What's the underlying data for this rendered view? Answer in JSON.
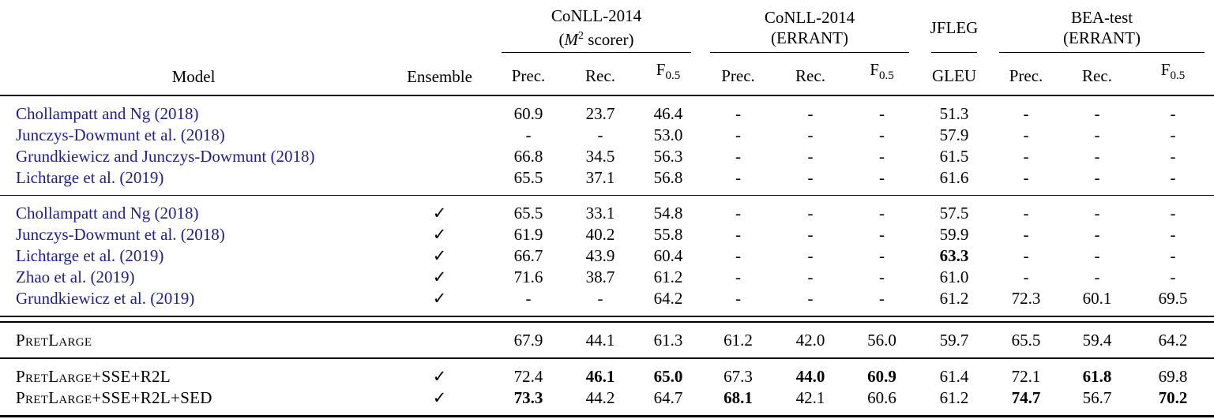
{
  "table": {
    "check_glyph": "✓",
    "dash_glyph": "-",
    "link_color": "#1f1f8c",
    "headers": {
      "model": "Model",
      "ensemble": "Ensemble",
      "groups": [
        {
          "line1": "CoNLL-2014",
          "m_prefix": "(",
          "m_var": "M",
          "m_sup": "2",
          "m_suffix": " scorer)",
          "cols": [
            {
              "t": "Prec."
            },
            {
              "t": "Rec."
            },
            {
              "t": "F",
              "sub": "0.5"
            }
          ]
        },
        {
          "line1": "CoNLL-2014",
          "line2": "(ERRANT)",
          "cols": [
            {
              "t": "Prec."
            },
            {
              "t": "Rec."
            },
            {
              "t": "F",
              "sub": "0.5"
            }
          ]
        },
        {
          "line1": "JFLEG",
          "cols": [
            {
              "t": "GLEU"
            }
          ]
        },
        {
          "line1": "BEA-test",
          "line2": "(ERRANT)",
          "cols": [
            {
              "t": "Prec."
            },
            {
              "t": "Rec."
            },
            {
              "t": "F",
              "sub": "0.5"
            }
          ]
        }
      ]
    },
    "sections": [
      {
        "rule": "none",
        "rows": [
          {
            "model": "Chollampatt and Ng (2018)",
            "link": true,
            "smallcaps": false,
            "ensemble": false,
            "vals": [
              "60.9",
              "23.7",
              "46.4",
              "-",
              "-",
              "-",
              "51.3",
              "-",
              "-",
              "-"
            ],
            "bold": []
          },
          {
            "model": "Junczys-Dowmunt et al. (2018)",
            "link": true,
            "smallcaps": false,
            "ensemble": false,
            "vals": [
              "-",
              "-",
              "53.0",
              "-",
              "-",
              "-",
              "57.9",
              "-",
              "-",
              "-"
            ],
            "bold": []
          },
          {
            "model": "Grundkiewicz and Junczys-Dowmunt (2018)",
            "link": true,
            "smallcaps": false,
            "ensemble": false,
            "vals": [
              "66.8",
              "34.5",
              "56.3",
              "-",
              "-",
              "-",
              "61.5",
              "-",
              "-",
              "-"
            ],
            "bold": []
          },
          {
            "model": "Lichtarge et al. (2019)",
            "link": true,
            "smallcaps": false,
            "ensemble": false,
            "vals": [
              "65.5",
              "37.1",
              "56.8",
              "-",
              "-",
              "-",
              "61.6",
              "-",
              "-",
              "-"
            ],
            "bold": []
          }
        ]
      },
      {
        "rule": "thin",
        "rows": [
          {
            "model": "Chollampatt and Ng (2018)",
            "link": true,
            "smallcaps": false,
            "ensemble": true,
            "vals": [
              "65.5",
              "33.1",
              "54.8",
              "-",
              "-",
              "-",
              "57.5",
              "-",
              "-",
              "-"
            ],
            "bold": []
          },
          {
            "model": "Junczys-Dowmunt et al. (2018)",
            "link": true,
            "smallcaps": false,
            "ensemble": true,
            "vals": [
              "61.9",
              "40.2",
              "55.8",
              "-",
              "-",
              "-",
              "59.9",
              "-",
              "-",
              "-"
            ],
            "bold": []
          },
          {
            "model": "Lichtarge et al. (2019)",
            "link": true,
            "smallcaps": false,
            "ensemble": true,
            "vals": [
              "66.7",
              "43.9",
              "60.4",
              "-",
              "-",
              "-",
              "63.3",
              "-",
              "-",
              "-"
            ],
            "bold": [
              6
            ]
          },
          {
            "model": "Zhao et al. (2019)",
            "link": true,
            "smallcaps": false,
            "ensemble": true,
            "vals": [
              "71.6",
              "38.7",
              "61.2",
              "-",
              "-",
              "-",
              "61.0",
              "-",
              "-",
              "-"
            ],
            "bold": []
          },
          {
            "model": "Grundkiewicz et al. (2019)",
            "link": true,
            "smallcaps": false,
            "ensemble": true,
            "vals": [
              "-",
              "-",
              "64.2",
              "-",
              "-",
              "-",
              "61.2",
              "72.3",
              "60.1",
              "69.5"
            ],
            "bold": []
          }
        ]
      },
      {
        "rule": "double",
        "rows": [
          {
            "model": "PretLarge",
            "link": false,
            "smallcaps": true,
            "ensemble": false,
            "vals": [
              "67.9",
              "44.1",
              "61.3",
              "61.2",
              "42.0",
              "56.0",
              "59.7",
              "65.5",
              "59.4",
              "64.2"
            ],
            "bold": []
          }
        ]
      },
      {
        "rule": "thin2",
        "rows": [
          {
            "model": "PretLarge+SSE+R2L",
            "link": false,
            "smallcaps": true,
            "ensemble": true,
            "vals": [
              "72.4",
              "46.1",
              "65.0",
              "67.3",
              "44.0",
              "60.9",
              "61.4",
              "72.1",
              "61.8",
              "69.8"
            ],
            "bold": [
              1,
              2,
              4,
              5,
              8
            ]
          },
          {
            "model": "PretLarge+SSE+R2L+SED",
            "link": false,
            "smallcaps": true,
            "ensemble": true,
            "vals": [
              "73.3",
              "44.2",
              "64.7",
              "68.1",
              "42.1",
              "60.6",
              "61.2",
              "74.7",
              "56.7",
              "70.2"
            ],
            "bold": [
              0,
              3,
              7,
              9
            ]
          }
        ]
      }
    ]
  }
}
